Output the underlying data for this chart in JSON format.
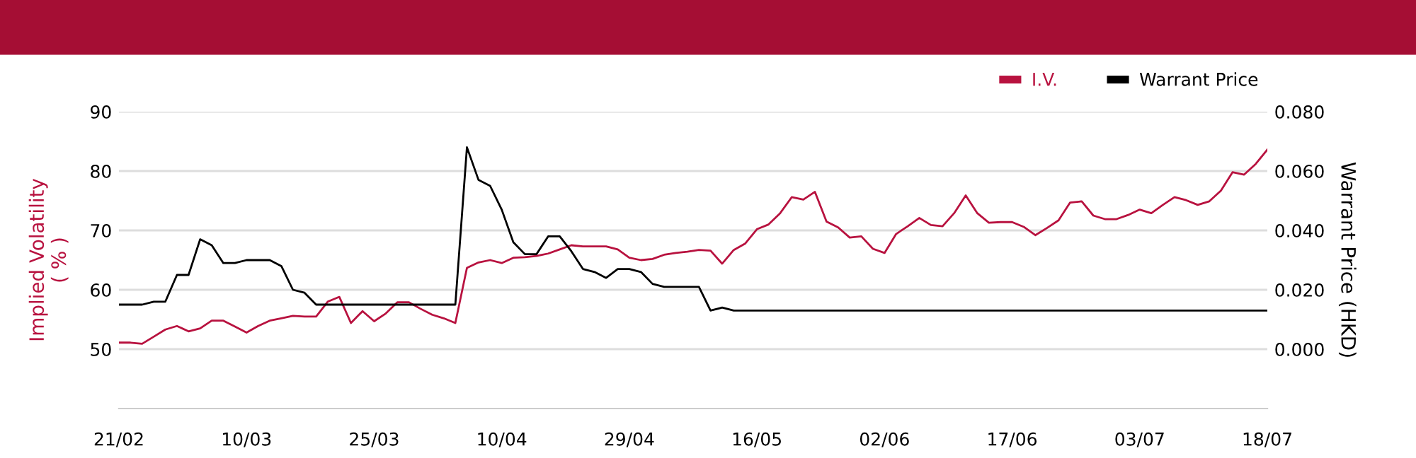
{
  "chart_data": {
    "type": "line",
    "categories": [
      "21/02",
      null,
      null,
      null,
      null,
      null,
      null,
      null,
      null,
      null,
      null,
      "10/03",
      null,
      null,
      null,
      null,
      null,
      null,
      null,
      null,
      null,
      null,
      "25/03",
      null,
      null,
      null,
      null,
      null,
      null,
      null,
      null,
      null,
      null,
      "10/04",
      null,
      null,
      null,
      null,
      null,
      null,
      null,
      null,
      null,
      null,
      "29/04",
      null,
      null,
      null,
      null,
      null,
      null,
      null,
      null,
      null,
      null,
      "16/05",
      null,
      null,
      null,
      null,
      null,
      null,
      null,
      null,
      null,
      null,
      "02/06",
      null,
      null,
      null,
      null,
      null,
      null,
      null,
      null,
      null,
      null,
      "17/06",
      null,
      null,
      null,
      null,
      null,
      null,
      null,
      null,
      null,
      null,
      "03/07",
      null,
      null,
      null,
      null,
      null,
      null,
      null,
      null,
      null,
      null,
      "18/07"
    ],
    "series": [
      {
        "name": "I.V.",
        "color": "#b8123f",
        "values": [
          51.1,
          51.1,
          50.9,
          52.1,
          53.3,
          53.9,
          53.0,
          53.5,
          54.8,
          54.8,
          53.8,
          52.8,
          53.9,
          54.8,
          55.2,
          55.6,
          55.5,
          55.5,
          58.0,
          58.8,
          54.4,
          56.4,
          54.7,
          56.0,
          57.9,
          57.9,
          56.8,
          55.8,
          55.2,
          54.4,
          63.7,
          64.6,
          65.0,
          64.5,
          65.4,
          65.5,
          65.7,
          66.1,
          66.8,
          67.5,
          67.3,
          67.3,
          67.3,
          66.8,
          65.4,
          65.0,
          65.2,
          65.9,
          66.2,
          66.4,
          66.7,
          66.6,
          64.4,
          66.7,
          67.8,
          70.2,
          71.0,
          72.9,
          75.6,
          75.2,
          76.5,
          71.5,
          70.5,
          68.8,
          69.0,
          66.9,
          66.2,
          69.4,
          70.7,
          72.1,
          70.9,
          70.7,
          72.9,
          75.9,
          72.9,
          71.3,
          71.4,
          71.4,
          70.6,
          69.2,
          70.4,
          71.7,
          74.7,
          74.9,
          72.5,
          71.9,
          71.9,
          72.6,
          73.5,
          72.9,
          74.3,
          75.6,
          75.1,
          74.3,
          74.9,
          76.7,
          79.8,
          79.4,
          81.2,
          83.6
        ]
      },
      {
        "name": "Warrant Price",
        "color": "#000000",
        "axis": "y2",
        "values": [
          0.015,
          0.015,
          0.015,
          0.016,
          0.016,
          0.025,
          0.025,
          0.037,
          0.035,
          0.029,
          0.029,
          0.03,
          0.03,
          0.03,
          0.028,
          0.02,
          0.019,
          0.015,
          0.015,
          0.015,
          0.015,
          0.015,
          0.015,
          0.015,
          0.015,
          0.015,
          0.015,
          0.015,
          0.015,
          0.015,
          0.068,
          0.057,
          0.055,
          0.047,
          0.036,
          0.032,
          0.032,
          0.038,
          0.038,
          0.033,
          0.027,
          0.026,
          0.024,
          0.027,
          0.027,
          0.026,
          0.022,
          0.021,
          0.021,
          0.021,
          0.021,
          0.013,
          0.014,
          0.013,
          0.013,
          0.013,
          0.013,
          0.013,
          0.013,
          0.013,
          0.013,
          0.013,
          0.013,
          0.013,
          0.013,
          0.013,
          0.013,
          0.013,
          0.013,
          0.013,
          0.013,
          0.013,
          0.013,
          0.013,
          0.013,
          0.013,
          0.013,
          0.013,
          0.013,
          0.013,
          0.013,
          0.013,
          0.013,
          0.013,
          0.013,
          0.013,
          0.013,
          0.013,
          0.013,
          0.013,
          0.013,
          0.013,
          0.013,
          0.013,
          0.013,
          0.013,
          0.013,
          0.013,
          0.013,
          0.013
        ]
      }
    ],
    "ylabel": "Implied Volatility\n( % )",
    "y2label": "Warrant Price (HKD)",
    "ylim": [
      40,
      90
    ],
    "yticks": [
      50,
      60,
      70,
      80,
      90
    ],
    "y2lim": [
      -0.02,
      0.08
    ],
    "y2ticks": [
      {
        "value": 0,
        "label": "0.000"
      },
      {
        "value": 0.02,
        "label": "0.020"
      },
      {
        "value": 0.04,
        "label": "0.040"
      },
      {
        "value": 0.06,
        "label": "0.060"
      },
      {
        "value": 0.08,
        "label": "0.080"
      }
    ],
    "grid": "y",
    "legend": "top right",
    "marker": "none",
    "line_style": "solid"
  }
}
